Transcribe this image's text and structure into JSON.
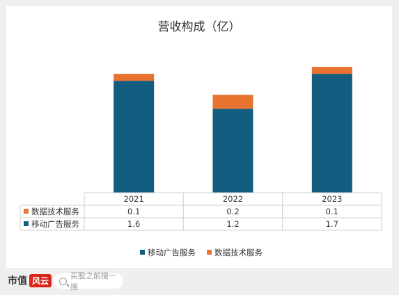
{
  "chart_data": {
    "type": "bar",
    "stacked": true,
    "title": "营收构成（亿）",
    "categories": [
      "2021",
      "2022",
      "2023"
    ],
    "series": [
      {
        "name": "移动广告服务",
        "values": [
          1.6,
          1.2,
          1.7
        ],
        "color": "#135e80",
        "value_labels": [
          "1.6",
          "1.2",
          "1.7"
        ]
      },
      {
        "name": "数据技术服务",
        "values": [
          0.1,
          0.2,
          0.1
        ],
        "color": "#e8732f",
        "value_labels": [
          "0.1",
          "0.2",
          "0.1"
        ]
      }
    ],
    "ylim": [
      0,
      1.85
    ],
    "grid": false,
    "legend_position": "bottom",
    "data_table": true
  },
  "footer": {
    "brand_text": "市值",
    "brand_mark": "风云",
    "search_placeholder": "买股之前搜一搜"
  }
}
